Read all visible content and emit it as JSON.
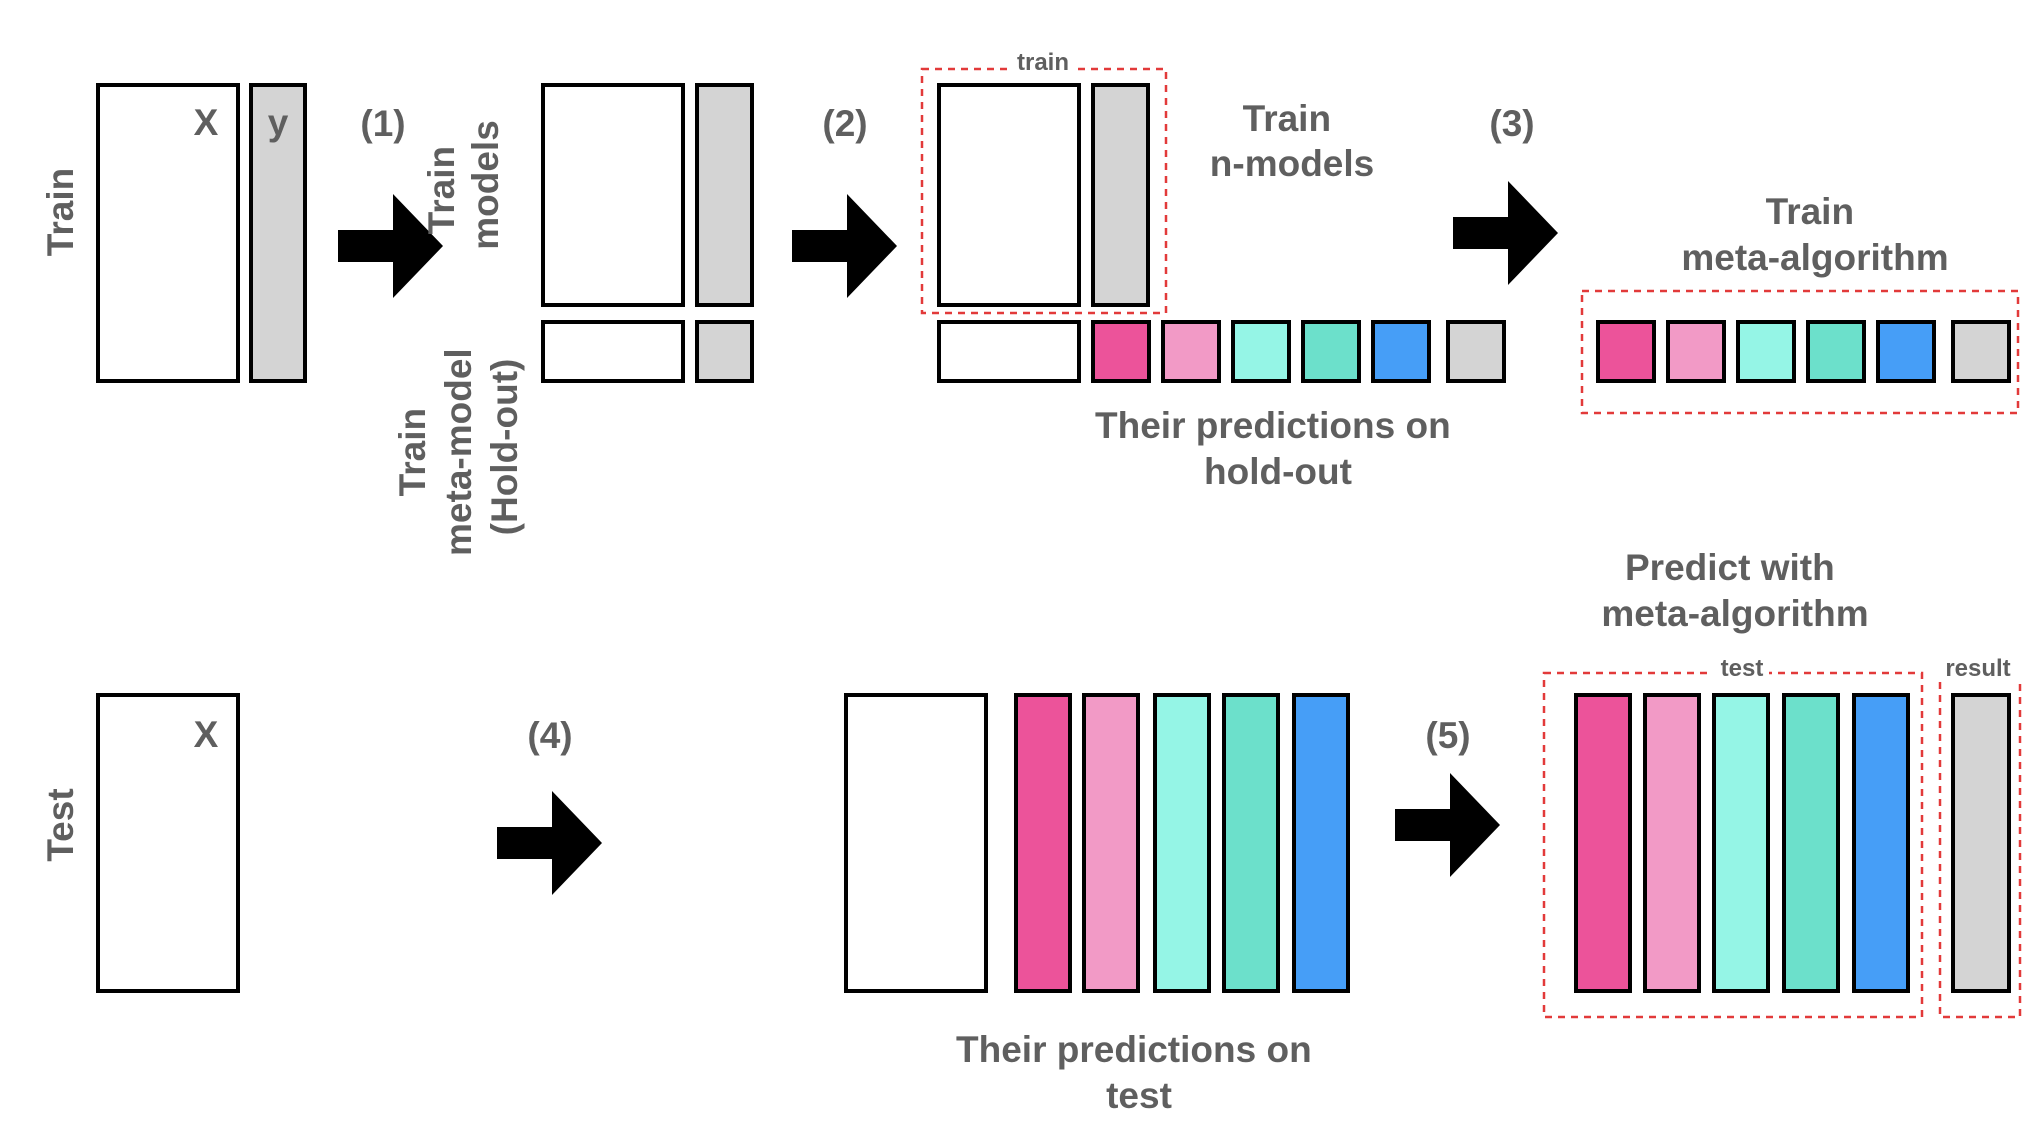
{
  "labels": {
    "train_row": "Train",
    "test_row": "Test",
    "x": "X",
    "y": "y",
    "x_test": "X",
    "train_models": [
      "Train",
      "models"
    ],
    "train_meta_model": [
      "Train",
      "meta-model",
      "(Hold-out)"
    ],
    "step1": "(1)",
    "step2": "(2)",
    "step3": "(3)",
    "step4": "(4)",
    "step5": "(5)",
    "train_small": "train",
    "train_n_models": [
      "Train",
      "n-models"
    ],
    "predictions_holdout": [
      "Their predictions on",
      "hold-out"
    ],
    "train_meta_algorithm": [
      "Train",
      "meta-algorithm"
    ],
    "predict_meta_algorithm": [
      "Predict with",
      "meta-algorithm"
    ],
    "test_small": "test",
    "result_small": "result",
    "predictions_test": [
      "Their predictions on",
      "test"
    ]
  },
  "colors": {
    "label_text": "#5f5f5f",
    "target": "#d4d4d4",
    "dashed_box": "#e23a3a",
    "model_predictions": [
      "#ec539a",
      "#f29ac6",
      "#95f5e6",
      "#6ce0cb",
      "#469ef7"
    ]
  }
}
